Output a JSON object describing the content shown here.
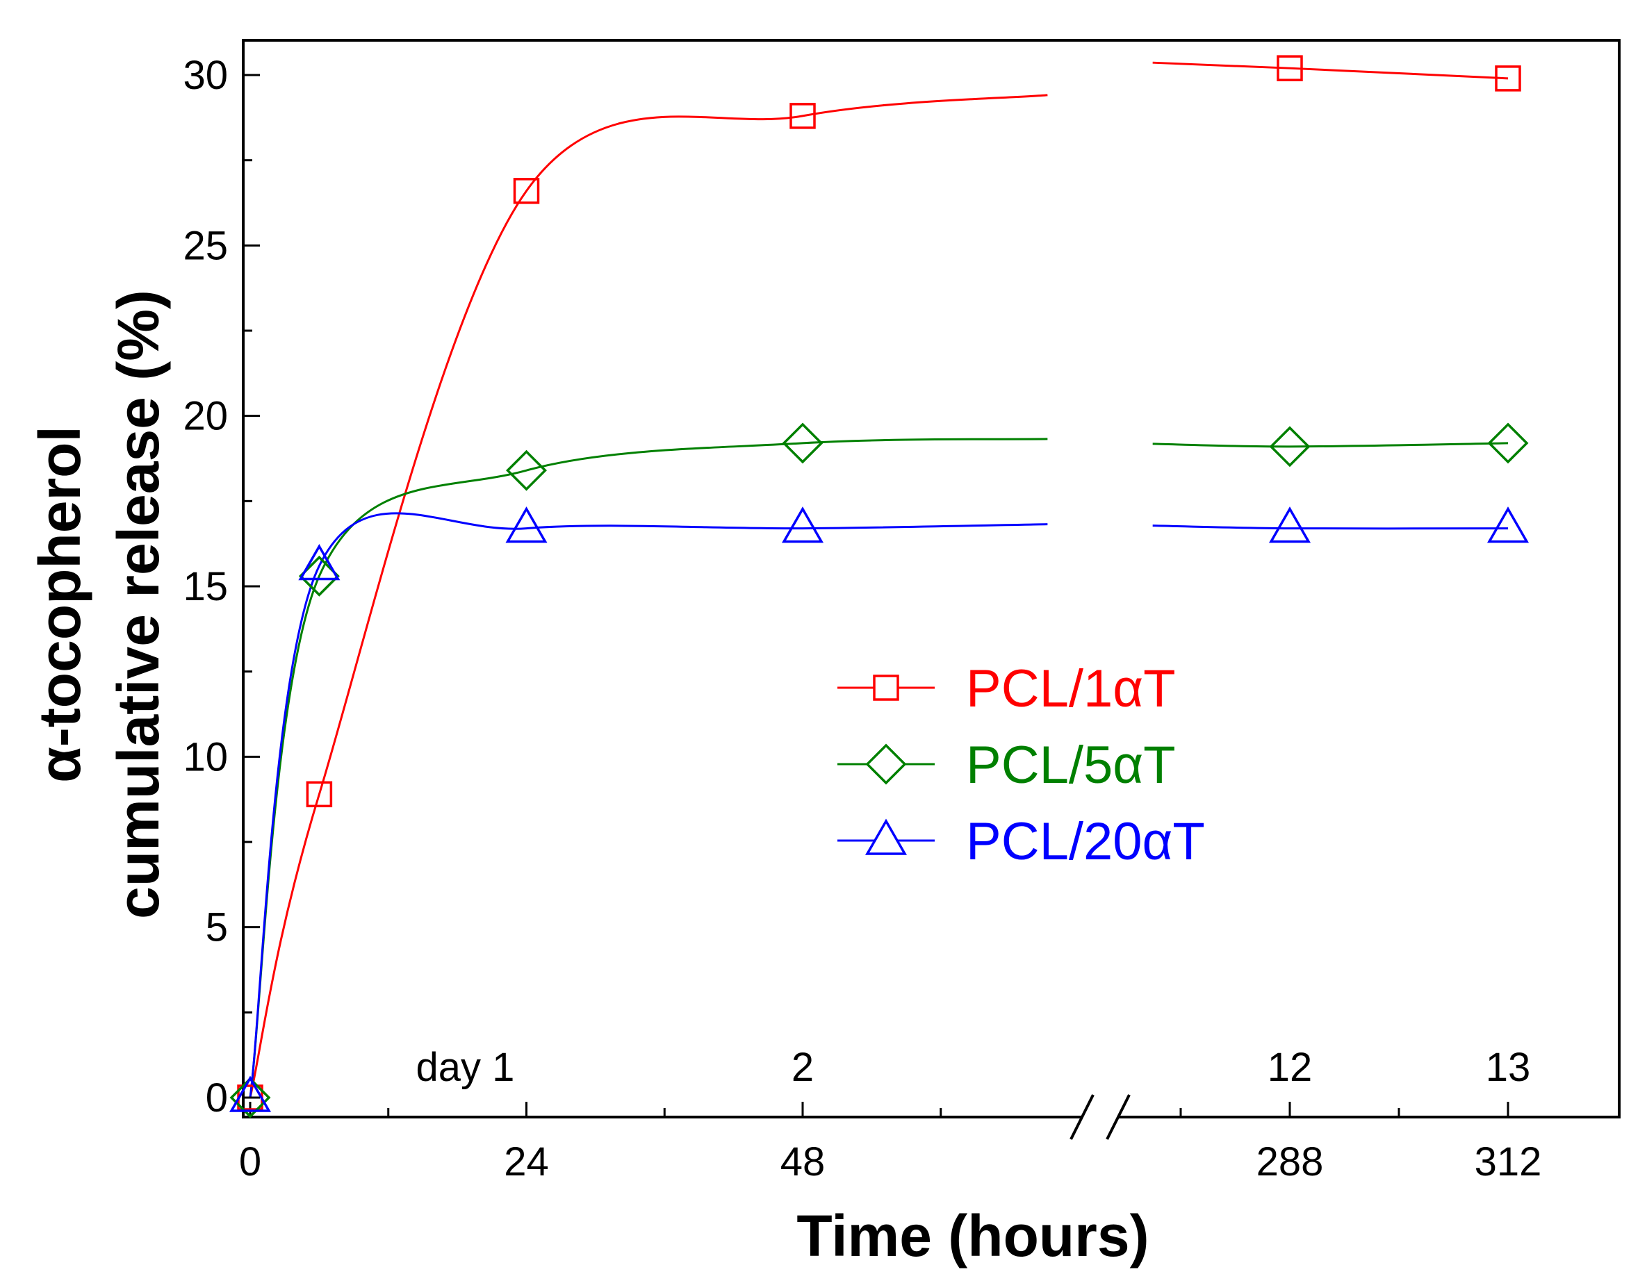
{
  "chart_data": {
    "type": "scatter",
    "title": "",
    "xlabel": "Time (hours)",
    "ylabel_line1": "α-tocopherol",
    "ylabel_line2": "cumulative release (%)",
    "ylim": [
      0,
      30
    ],
    "yticks": [
      0,
      5,
      10,
      15,
      20,
      25,
      30
    ],
    "xticks": [
      {
        "label": "0",
        "value": 0,
        "day_label": ""
      },
      {
        "label": "24",
        "value": 24,
        "day_label": "day 1"
      },
      {
        "label": "48",
        "value": 48,
        "day_label": "2"
      },
      {
        "label": "288",
        "value": 288,
        "day_label": "12"
      },
      {
        "label": "312",
        "value": 312,
        "day_label": "13"
      }
    ],
    "x_axis_break": {
      "after_hours": 70,
      "resume_hours": 272
    },
    "legend_position": "center-right",
    "series": [
      {
        "name": "PCL/1αT",
        "color": "#ff0000",
        "marker": "square",
        "x": [
          0,
          6,
          24,
          48,
          288,
          312
        ],
        "y": [
          0,
          8.9,
          26.6,
          28.8,
          30.2,
          29.9
        ]
      },
      {
        "name": "PCL/5αT",
        "color": "#008000",
        "marker": "diamond",
        "x": [
          0,
          6,
          24,
          48,
          288,
          312
        ],
        "y": [
          0,
          15.3,
          18.4,
          19.2,
          19.1,
          19.2
        ]
      },
      {
        "name": "PCL/20αT",
        "color": "#0000ff",
        "marker": "triangle",
        "x": [
          0,
          6,
          24,
          48,
          288,
          312
        ],
        "y": [
          0,
          15.6,
          16.7,
          16.7,
          16.7,
          16.7
        ]
      }
    ]
  }
}
